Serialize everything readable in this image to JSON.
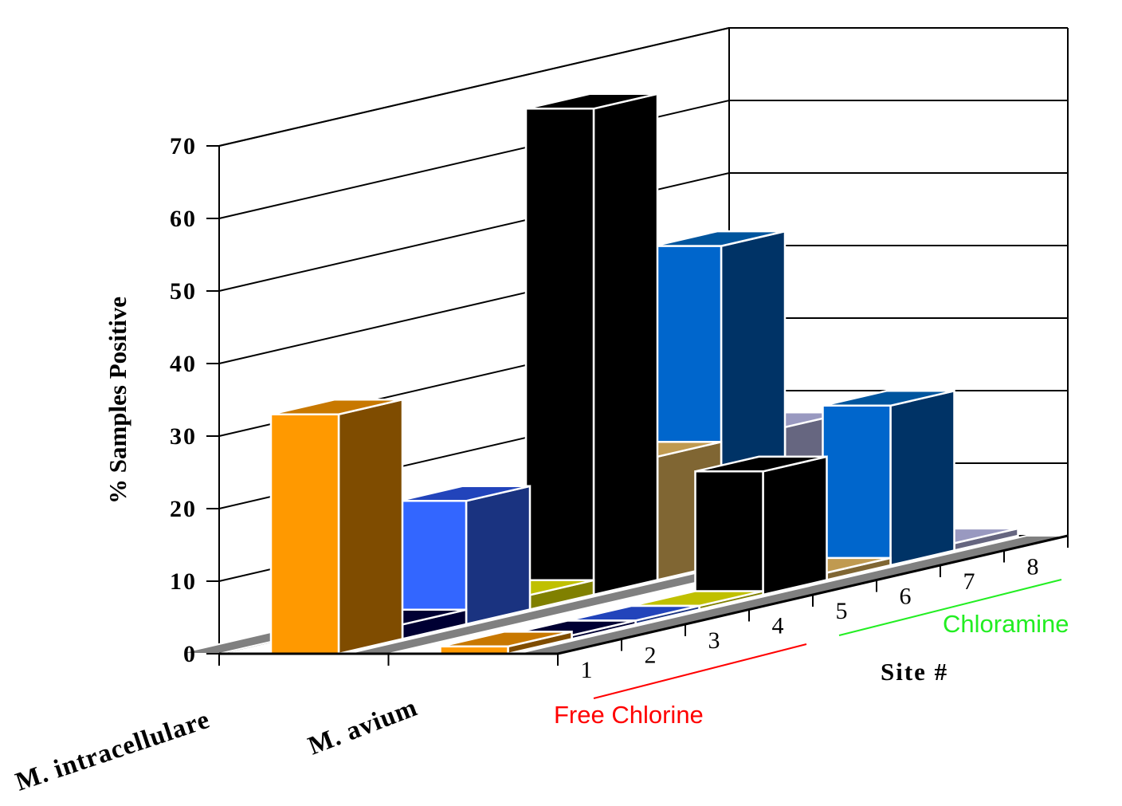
{
  "chart_data": {
    "type": "bar",
    "subtype": "3d-column",
    "ylabel": "% Samples Positive",
    "xlabel": "Site #",
    "ylim": [
      0,
      70
    ],
    "yticks": [
      "0",
      "10",
      "20",
      "30",
      "40",
      "50",
      "60",
      "70"
    ],
    "grid": true,
    "categories": [
      "1",
      "2",
      "3",
      "4",
      "5",
      "6",
      "7",
      "8"
    ],
    "category_groups": [
      {
        "label": "Free Chlorine",
        "sites": [
          "1",
          "2",
          "3",
          "4"
        ],
        "color": "#ff0000"
      },
      {
        "label": "Chloramine",
        "sites": [
          "5",
          "6",
          "7",
          "8"
        ],
        "color": "#00ee00"
      }
    ],
    "series": [
      {
        "name": "M. intracellulare",
        "values": [
          33,
          2,
          17,
          2,
          67,
          17,
          44,
          17
        ]
      },
      {
        "name": "M. avium",
        "values": [
          1,
          0.5,
          0.5,
          0.5,
          17,
          1,
          22,
          1
        ]
      }
    ],
    "site_colors": [
      {
        "front": "#ff9900",
        "side": "#7f4c00",
        "top": "#c87800"
      },
      {
        "front": "#000066",
        "side": "#000033",
        "top": "#000033"
      },
      {
        "front": "#3366ff",
        "side": "#1a3380",
        "top": "#2244bb"
      },
      {
        "front": "#c0c000",
        "side": "#808000",
        "top": "#c0c000"
      },
      {
        "front": "#000000",
        "side": "#000000",
        "top": "#000000"
      },
      {
        "front": "#c09a50",
        "side": "#806633",
        "top": "#c09a50"
      },
      {
        "front": "#0066cc",
        "side": "#003366",
        "top": "#00559e"
      },
      {
        "front": "#9999c0",
        "side": "#666680",
        "top": "#9999c0"
      }
    ]
  }
}
